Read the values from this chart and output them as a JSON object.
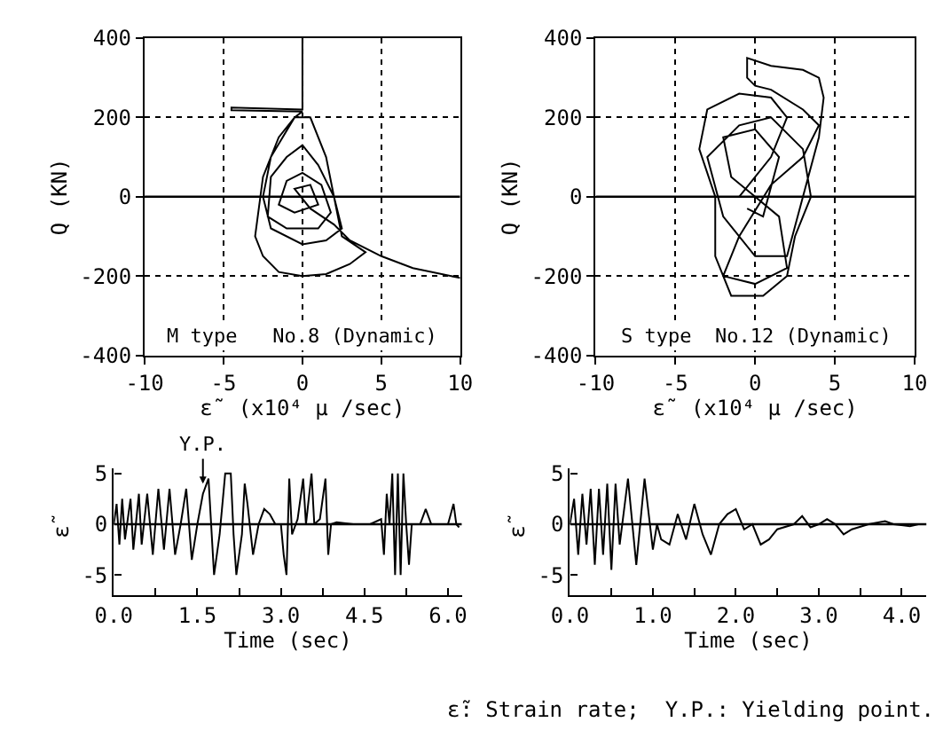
{
  "chart_data": [
    {
      "type": "line",
      "xlabel": "ε̃  (x10⁴ μ /sec)",
      "ylabel": "Q (KN)",
      "xlim": [
        -10,
        10
      ],
      "ylim": [
        -400,
        400
      ],
      "xticks": [
        -10,
        -5,
        0,
        5,
        10
      ],
      "yticks": [
        -400,
        -200,
        0,
        200,
        400
      ],
      "grid": true,
      "line_style": "solid",
      "ref_lines": [
        {
          "axis": "y",
          "value": 0,
          "color": "#000000",
          "line_style": "solid"
        }
      ],
      "annotations": [
        "M type   No.8 (Dynamic)"
      ],
      "series": [
        {
          "color": "#000000",
          "x": [
            0,
            0,
            -4.5,
            -4.5,
            0,
            -0.5,
            -1.5,
            -2.5,
            -3,
            -2.5,
            -1.5,
            0,
            1.5,
            3,
            4,
            2.5,
            2,
            1.5,
            0.5,
            -0.5,
            -2,
            -2.5,
            -2,
            0,
            1.5,
            2.5,
            2,
            1,
            0,
            -1,
            -2,
            -2.2,
            -1,
            1,
            1.8,
            1.2,
            0,
            -1,
            -1.5,
            -0.5,
            1,
            0.5,
            -0.5,
            0.5,
            2,
            3,
            5,
            7,
            10
          ],
          "values": [
            400,
            220,
            225,
            218,
            215,
            200,
            150,
            50,
            -100,
            -150,
            -190,
            -200,
            -195,
            -170,
            -140,
            -100,
            0,
            100,
            200,
            200,
            100,
            0,
            -80,
            -120,
            -110,
            -80,
            0,
            80,
            130,
            100,
            50,
            -50,
            -80,
            -80,
            -40,
            30,
            60,
            40,
            -20,
            -40,
            -20,
            30,
            20,
            -30,
            -70,
            -110,
            -150,
            -180,
            -205
          ]
        }
      ]
    },
    {
      "type": "line",
      "xlabel": "ε̃  (x10⁴ μ /sec)",
      "ylabel": "Q (KN)",
      "xlim": [
        -10,
        10
      ],
      "ylim": [
        -400,
        400
      ],
      "xticks": [
        -10,
        -5,
        0,
        5,
        10
      ],
      "yticks": [
        -400,
        -200,
        0,
        200,
        400
      ],
      "grid": true,
      "line_style": "solid",
      "ref_lines": [
        {
          "axis": "y",
          "value": 0,
          "color": "#000000",
          "line_style": "solid"
        }
      ],
      "annotations": [
        "S type  No.12 (Dynamic)"
      ],
      "series": [
        {
          "color": "#000000",
          "x": [
            -1,
            1,
            2,
            1,
            -1,
            -3,
            -3.5,
            -2.5,
            -2.5,
            -1.5,
            0.5,
            2,
            2.5,
            3.5,
            3,
            1,
            -1,
            -3,
            -2,
            0,
            2,
            3,
            4,
            4.3,
            4,
            3,
            1,
            -0.5,
            -0.5,
            0,
            1,
            3,
            4,
            3,
            1,
            -1,
            -2,
            0,
            2,
            1.5,
            0,
            -1.5,
            -2,
            0,
            1.5,
            0.5,
            -0.5
          ],
          "values": [
            0,
            100,
            200,
            250,
            260,
            220,
            120,
            0,
            -150,
            -250,
            -250,
            -200,
            -100,
            0,
            120,
            200,
            180,
            100,
            -50,
            -150,
            -150,
            0,
            150,
            250,
            300,
            320,
            330,
            350,
            300,
            280,
            270,
            220,
            180,
            100,
            30,
            -100,
            -200,
            -220,
            -180,
            -50,
            0,
            50,
            150,
            170,
            100,
            -50,
            -30
          ]
        }
      ]
    },
    {
      "type": "line",
      "xlabel": "Time (sec)",
      "ylabel": "ε̃",
      "xlim": [
        0,
        6.25
      ],
      "ylim": [
        -7,
        5.5
      ],
      "xticks": [
        {
          "value": 0,
          "label": "0.0"
        },
        {
          "value": 0.75,
          "label": null
        },
        {
          "value": 1.5,
          "label": "1.5"
        },
        {
          "value": 2.25,
          "label": null
        },
        {
          "value": 3,
          "label": "3.0"
        },
        {
          "value": 3.75,
          "label": null
        },
        {
          "value": 4.5,
          "label": "4.5"
        },
        {
          "value": 5.25,
          "label": null
        },
        {
          "value": 6,
          "label": "6.0"
        }
      ],
      "yticks": [
        -5,
        0,
        5
      ],
      "grid": false,
      "line_style": "solid",
      "ref_lines": [
        {
          "axis": "y",
          "value": 0,
          "color": "#000000",
          "line_style": "solid"
        }
      ],
      "annotations": [
        {
          "text": "Y.P.",
          "x": 1.6,
          "y": 4
        }
      ],
      "series": [
        {
          "color": "#000000",
          "x": [
            0,
            0.05,
            0.1,
            0.15,
            0.2,
            0.3,
            0.35,
            0.45,
            0.5,
            0.6,
            0.7,
            0.8,
            0.9,
            1.0,
            1.1,
            1.2,
            1.3,
            1.4,
            1.5,
            1.6,
            1.7,
            1.8,
            1.9,
            2.0,
            2.1,
            2.15,
            2.2,
            2.3,
            2.35,
            2.4,
            2.5,
            2.6,
            2.7,
            2.8,
            2.9,
            3.0,
            3.05,
            3.1,
            3.15,
            3.2,
            3.3,
            3.4,
            3.45,
            3.55,
            3.6,
            3.7,
            3.8,
            3.85,
            3.9,
            4.0,
            4.3,
            4.6,
            4.8,
            4.85,
            4.9,
            4.95,
            5.0,
            5.05,
            5.1,
            5.15,
            5.2,
            5.25,
            5.3,
            5.35,
            5.5,
            5.6,
            5.7,
            6.0,
            6.1,
            6.15,
            6.2
          ],
          "values": [
            0,
            2,
            -2,
            2.5,
            -1.5,
            2.5,
            -2.5,
            3,
            -2,
            3,
            -3,
            3.5,
            -2.5,
            3.5,
            -3,
            0,
            3.5,
            -3.5,
            0,
            3,
            4.5,
            -5,
            -1,
            5,
            5,
            -1,
            -5,
            -1,
            4,
            2,
            -3,
            0,
            1.5,
            1,
            0,
            0,
            -3,
            -5,
            4.5,
            -1,
            0.5,
            4.5,
            0,
            5,
            0,
            0.5,
            4.5,
            -3,
            0,
            0.2,
            0,
            0,
            0.5,
            -3,
            3,
            0,
            5,
            -5,
            5,
            -5,
            5,
            0,
            -4,
            0,
            0,
            1.5,
            0,
            0,
            2,
            0,
            -0.3
          ]
        }
      ]
    },
    {
      "type": "line",
      "xlabel": "Time (sec)",
      "ylabel": "ε̃",
      "xlim": [
        0,
        4.3
      ],
      "ylim": [
        -7,
        5.5
      ],
      "xticks": [
        {
          "value": 0,
          "label": "0.0"
        },
        {
          "value": 0.5,
          "label": null
        },
        {
          "value": 1,
          "label": "1.0"
        },
        {
          "value": 1.5,
          "label": null
        },
        {
          "value": 2,
          "label": "2.0"
        },
        {
          "value": 2.5,
          "label": null
        },
        {
          "value": 3,
          "label": "3.0"
        },
        {
          "value": 3.5,
          "label": null
        },
        {
          "value": 4,
          "label": "4.0"
        }
      ],
      "yticks": [
        -5,
        0,
        5
      ],
      "grid": false,
      "line_style": "solid",
      "ref_lines": [
        {
          "axis": "y",
          "value": 0,
          "color": "#000000",
          "line_style": "solid"
        }
      ],
      "annotations": [
        "ε̃: Strain rate;  Y.P.: Yielding point."
      ],
      "series": [
        {
          "color": "#000000",
          "x": [
            0,
            0.05,
            0.1,
            0.15,
            0.2,
            0.25,
            0.3,
            0.35,
            0.4,
            0.45,
            0.5,
            0.55,
            0.6,
            0.7,
            0.8,
            0.9,
            1.0,
            1.05,
            1.1,
            1.2,
            1.3,
            1.4,
            1.5,
            1.6,
            1.7,
            1.8,
            1.9,
            2.0,
            2.1,
            2.2,
            2.3,
            2.4,
            2.5,
            2.7,
            2.8,
            2.9,
            3.0,
            3.1,
            3.2,
            3.3,
            3.4,
            3.6,
            3.8,
            3.9,
            4.1,
            4.2
          ],
          "values": [
            0,
            2.5,
            -3,
            3,
            -2,
            3.5,
            -4,
            3.5,
            -3,
            4,
            -4.5,
            4,
            -2,
            4.5,
            -4,
            4.5,
            -2.5,
            0,
            -1.5,
            -2,
            1,
            -1.5,
            2,
            -1,
            -3,
            0,
            1,
            1.5,
            -0.5,
            0,
            -2,
            -1.5,
            -0.5,
            0,
            0.8,
            -0.3,
            0,
            0.5,
            0,
            -1,
            -0.5,
            0,
            0.3,
            0,
            -0.2,
            0
          ]
        }
      ]
    }
  ]
}
